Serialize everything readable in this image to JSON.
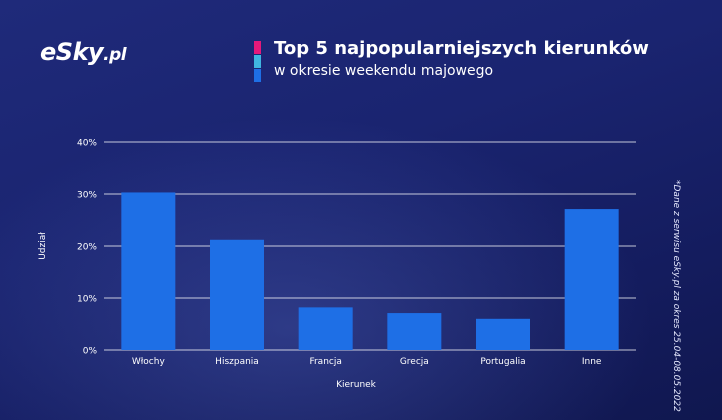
{
  "brand": {
    "logo_main": "eSky",
    "logo_suffix": ".pl"
  },
  "header": {
    "title": "Top 5 najpopularniejszych kierunków",
    "subtitle": "w okresie weekendu majowego",
    "accent_colors": [
      "#e5197a",
      "#3fb6e0",
      "#1e6fe6"
    ]
  },
  "footnote": "*Dane z serwisu eSky.pl za okres 25.04-08.05.2022",
  "colors": {
    "bar": "#1e6fe6",
    "grid": "#ffffff"
  },
  "chart_data": {
    "type": "bar",
    "title": "Top 5 najpopularniejszych kierunków",
    "xlabel": "Kierunek",
    "ylabel": "Udział",
    "categories": [
      "Włochy",
      "Hiszpania",
      "Francja",
      "Grecja",
      "Portugalia",
      "Inne"
    ],
    "values": [
      30.3,
      21.2,
      8.2,
      7.1,
      6.0,
      27.1
    ],
    "ylim": [
      0,
      40
    ],
    "yticks": [
      0,
      10,
      20,
      30,
      40
    ],
    "ytick_labels": [
      "0%",
      "10%",
      "20%",
      "30%",
      "40%"
    ],
    "grid": true
  }
}
